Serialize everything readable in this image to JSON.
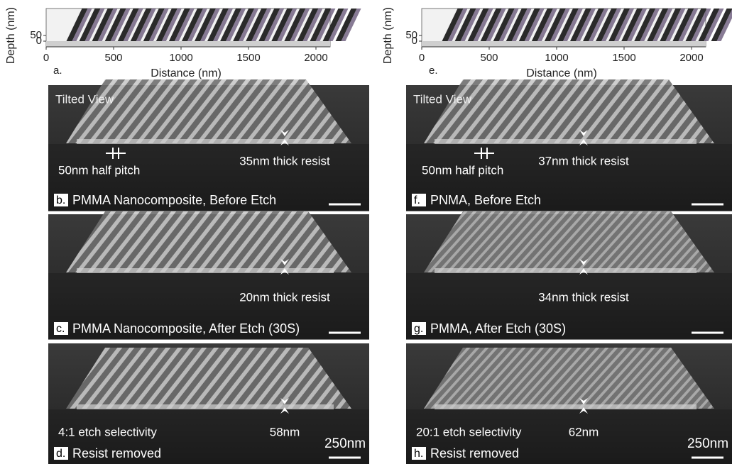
{
  "columns": [
    {
      "plot": {
        "y_label": "Depth (nm)",
        "x_label": "Distance (nm)",
        "panel_label": "a.",
        "xticks": [
          0,
          500,
          1000,
          1500,
          2000
        ],
        "yticks": [
          0,
          50
        ]
      },
      "panels": [
        {
          "label": "b.",
          "caption": "PMMA Nanocomposite, Before Etch",
          "view_label": "Tilted View",
          "pitch_label": "50nm half pitch",
          "thickness_label": "35nm thick resist"
        },
        {
          "label": "c.",
          "caption": "PMMA Nanocomposite, After Etch (30S)",
          "thickness_label": "20nm thick resist"
        },
        {
          "label": "d.",
          "caption": "Resist removed",
          "selectivity_label": "4:1 etch selectivity",
          "height_label": "58nm",
          "scale_label": "250nm"
        }
      ]
    },
    {
      "plot": {
        "y_label": "Depth (nm)",
        "x_label": "Distance (nm)",
        "panel_label": "e.",
        "xticks": [
          0,
          500,
          1000,
          1500,
          2000
        ],
        "yticks": [
          0,
          50
        ]
      },
      "panels": [
        {
          "label": "f.",
          "caption": "PNMA, Before Etch",
          "view_label": "Tilted View",
          "pitch_label": "50nm half pitch",
          "thickness_label": "37nm thick resist"
        },
        {
          "label": "g.",
          "caption": "PMMA, After Etch (30S)",
          "thickness_label": "34nm thick resist"
        },
        {
          "label": "h.",
          "caption": "Resist removed",
          "selectivity_label": "20:1 etch selectivity",
          "height_label": "62nm",
          "scale_label": "250nm"
        }
      ]
    }
  ]
}
